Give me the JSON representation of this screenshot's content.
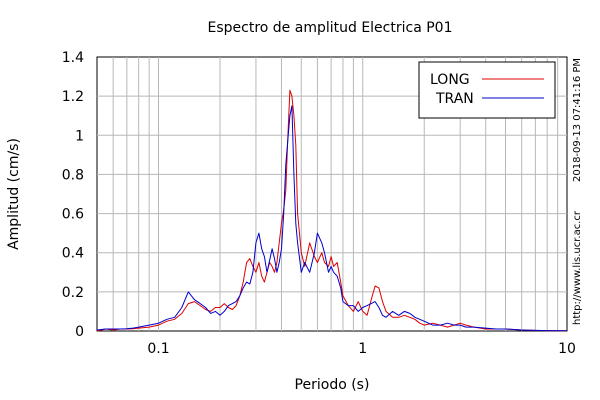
{
  "chart_data": {
    "type": "line",
    "title": "Espectro de amplitud Electrica P01",
    "xlabel": "Periodo (s)",
    "ylabel": "Amplitud (cm/s)",
    "xscale": "log",
    "xlim": [
      0.05,
      10
    ],
    "ylim": [
      0,
      1.4
    ],
    "x_ticks": [
      {
        "value": 0.1,
        "label": "0.1"
      },
      {
        "value": 1,
        "label": "1"
      },
      {
        "value": 10,
        "label": "10"
      }
    ],
    "y_ticks": [
      {
        "value": 0,
        "label": "0"
      },
      {
        "value": 0.2,
        "label": "0.2"
      },
      {
        "value": 0.4,
        "label": "0.4"
      },
      {
        "value": 0.6,
        "label": "0.6"
      },
      {
        "value": 0.8,
        "label": "0.8"
      },
      {
        "value": 1,
        "label": "1"
      },
      {
        "value": 1.2,
        "label": "1.2"
      },
      {
        "value": 1.4,
        "label": "1.4"
      }
    ],
    "grid": true,
    "legend_position": "top-right",
    "series": [
      {
        "name": "LONG",
        "color": "#dd0000",
        "x": [
          0.05,
          0.055,
          0.06,
          0.065,
          0.07,
          0.075,
          0.08,
          0.09,
          0.1,
          0.11,
          0.12,
          0.13,
          0.14,
          0.15,
          0.16,
          0.17,
          0.18,
          0.19,
          0.2,
          0.21,
          0.22,
          0.23,
          0.24,
          0.25,
          0.26,
          0.27,
          0.28,
          0.29,
          0.3,
          0.31,
          0.32,
          0.33,
          0.34,
          0.35,
          0.36,
          0.37,
          0.38,
          0.39,
          0.4,
          0.41,
          0.42,
          0.43,
          0.44,
          0.45,
          0.46,
          0.47,
          0.48,
          0.5,
          0.52,
          0.55,
          0.58,
          0.6,
          0.63,
          0.65,
          0.68,
          0.7,
          0.72,
          0.75,
          0.78,
          0.8,
          0.85,
          0.9,
          0.95,
          1.0,
          1.05,
          1.1,
          1.15,
          1.2,
          1.25,
          1.3,
          1.4,
          1.5,
          1.6,
          1.7,
          1.8,
          1.9,
          2.0,
          2.2,
          2.4,
          2.6,
          2.8,
          3.0,
          3.2,
          3.5,
          4.0,
          4.5,
          5.0,
          6.0,
          7.0,
          8.0,
          10.0
        ],
        "values": [
          0.0,
          0.01,
          0.005,
          0.01,
          0.01,
          0.012,
          0.015,
          0.02,
          0.03,
          0.05,
          0.06,
          0.09,
          0.14,
          0.15,
          0.13,
          0.11,
          0.1,
          0.12,
          0.12,
          0.14,
          0.12,
          0.11,
          0.13,
          0.18,
          0.25,
          0.35,
          0.37,
          0.33,
          0.3,
          0.35,
          0.28,
          0.25,
          0.3,
          0.35,
          0.33,
          0.3,
          0.35,
          0.45,
          0.55,
          0.62,
          0.72,
          1.0,
          1.23,
          1.2,
          1.1,
          0.95,
          0.6,
          0.4,
          0.33,
          0.45,
          0.38,
          0.35,
          0.4,
          0.35,
          0.33,
          0.38,
          0.33,
          0.35,
          0.25,
          0.18,
          0.13,
          0.1,
          0.15,
          0.1,
          0.08,
          0.16,
          0.23,
          0.22,
          0.15,
          0.1,
          0.07,
          0.07,
          0.08,
          0.07,
          0.06,
          0.04,
          0.03,
          0.04,
          0.03,
          0.02,
          0.03,
          0.04,
          0.03,
          0.02,
          0.01,
          0.01,
          0.01,
          0.005,
          0.003,
          0.002,
          0.001
        ]
      },
      {
        "name": "TRAN",
        "color": "#0000cc",
        "x": [
          0.05,
          0.055,
          0.06,
          0.065,
          0.07,
          0.075,
          0.08,
          0.09,
          0.1,
          0.11,
          0.12,
          0.13,
          0.14,
          0.15,
          0.16,
          0.17,
          0.18,
          0.19,
          0.2,
          0.21,
          0.22,
          0.23,
          0.24,
          0.25,
          0.26,
          0.27,
          0.28,
          0.29,
          0.3,
          0.31,
          0.32,
          0.33,
          0.34,
          0.35,
          0.36,
          0.37,
          0.38,
          0.39,
          0.4,
          0.41,
          0.42,
          0.43,
          0.44,
          0.45,
          0.46,
          0.47,
          0.48,
          0.5,
          0.52,
          0.55,
          0.58,
          0.6,
          0.63,
          0.65,
          0.68,
          0.7,
          0.72,
          0.75,
          0.78,
          0.8,
          0.85,
          0.9,
          0.95,
          1.0,
          1.05,
          1.1,
          1.15,
          1.2,
          1.25,
          1.3,
          1.4,
          1.5,
          1.6,
          1.7,
          1.8,
          1.9,
          2.0,
          2.2,
          2.4,
          2.6,
          2.8,
          3.0,
          3.2,
          3.5,
          4.0,
          4.5,
          5.0,
          6.0,
          7.0,
          8.0,
          10.0
        ],
        "values": [
          0.005,
          0.01,
          0.01,
          0.01,
          0.012,
          0.015,
          0.02,
          0.03,
          0.04,
          0.06,
          0.07,
          0.12,
          0.2,
          0.16,
          0.14,
          0.12,
          0.09,
          0.1,
          0.08,
          0.1,
          0.13,
          0.14,
          0.15,
          0.18,
          0.22,
          0.25,
          0.24,
          0.3,
          0.45,
          0.5,
          0.42,
          0.38,
          0.3,
          0.36,
          0.42,
          0.37,
          0.3,
          0.35,
          0.42,
          0.6,
          0.85,
          0.98,
          1.1,
          1.15,
          0.8,
          0.55,
          0.45,
          0.3,
          0.35,
          0.3,
          0.4,
          0.5,
          0.45,
          0.4,
          0.3,
          0.33,
          0.3,
          0.28,
          0.22,
          0.15,
          0.13,
          0.13,
          0.1,
          0.12,
          0.13,
          0.14,
          0.15,
          0.12,
          0.08,
          0.07,
          0.1,
          0.08,
          0.1,
          0.09,
          0.07,
          0.06,
          0.05,
          0.03,
          0.03,
          0.04,
          0.03,
          0.03,
          0.02,
          0.02,
          0.015,
          0.01,
          0.01,
          0.005,
          0.003,
          0.002,
          0.001
        ]
      }
    ],
    "side_text": [
      "2018-09-13 07:41:16 PM",
      "http://www.lis.ucr.ac.cr"
    ]
  }
}
